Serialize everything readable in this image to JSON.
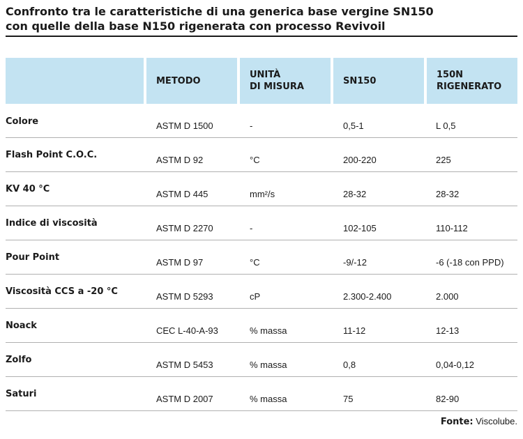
{
  "title": {
    "line1": "Confronto tra le caratteristiche di una generica base vergine SN150",
    "line2": "con quelle della base N150 rigenerata con processo Revivoil"
  },
  "table": {
    "headers": [
      "",
      "METODO",
      "UNITÀ\nDI MISURA",
      "SN150",
      "150N\nRIGENERATO"
    ],
    "rows": [
      [
        "Colore",
        "ASTM D 1500",
        "-",
        "0,5-1",
        "L 0,5"
      ],
      [
        "Flash Point C.O.C.",
        "ASTM D 92",
        "°C",
        "200-220",
        "225"
      ],
      [
        "KV 40 °C",
        "ASTM D 445",
        "mm²/s",
        "28-32",
        "28-32"
      ],
      [
        "Indice di viscosità",
        "ASTM D 2270",
        "-",
        "102-105",
        "110-112"
      ],
      [
        "Pour Point",
        "ASTM D 97",
        "°C",
        "-9/-12",
        "-6 (-18 con PPD)"
      ],
      [
        "Viscosità CCS a -20 °C",
        "ASTM D 5293",
        "cP",
        "2.300-2.400",
        "2.000"
      ],
      [
        "Noack",
        "CEC L-40-A-93",
        "% massa",
        "11-12",
        "12-13"
      ],
      [
        "Zolfo",
        "ASTM D 5453",
        "% massa",
        "0,8",
        "0,04-0,12"
      ],
      [
        "Saturi",
        "ASTM D 2007",
        "% massa",
        "75",
        "82-90"
      ]
    ]
  },
  "source": {
    "label": "Fonte:",
    "value": "Viscolube."
  },
  "colors": {
    "header_bg": "#c3e3f2",
    "rule": "#b0b0b0",
    "text": "#1a1a1a"
  }
}
